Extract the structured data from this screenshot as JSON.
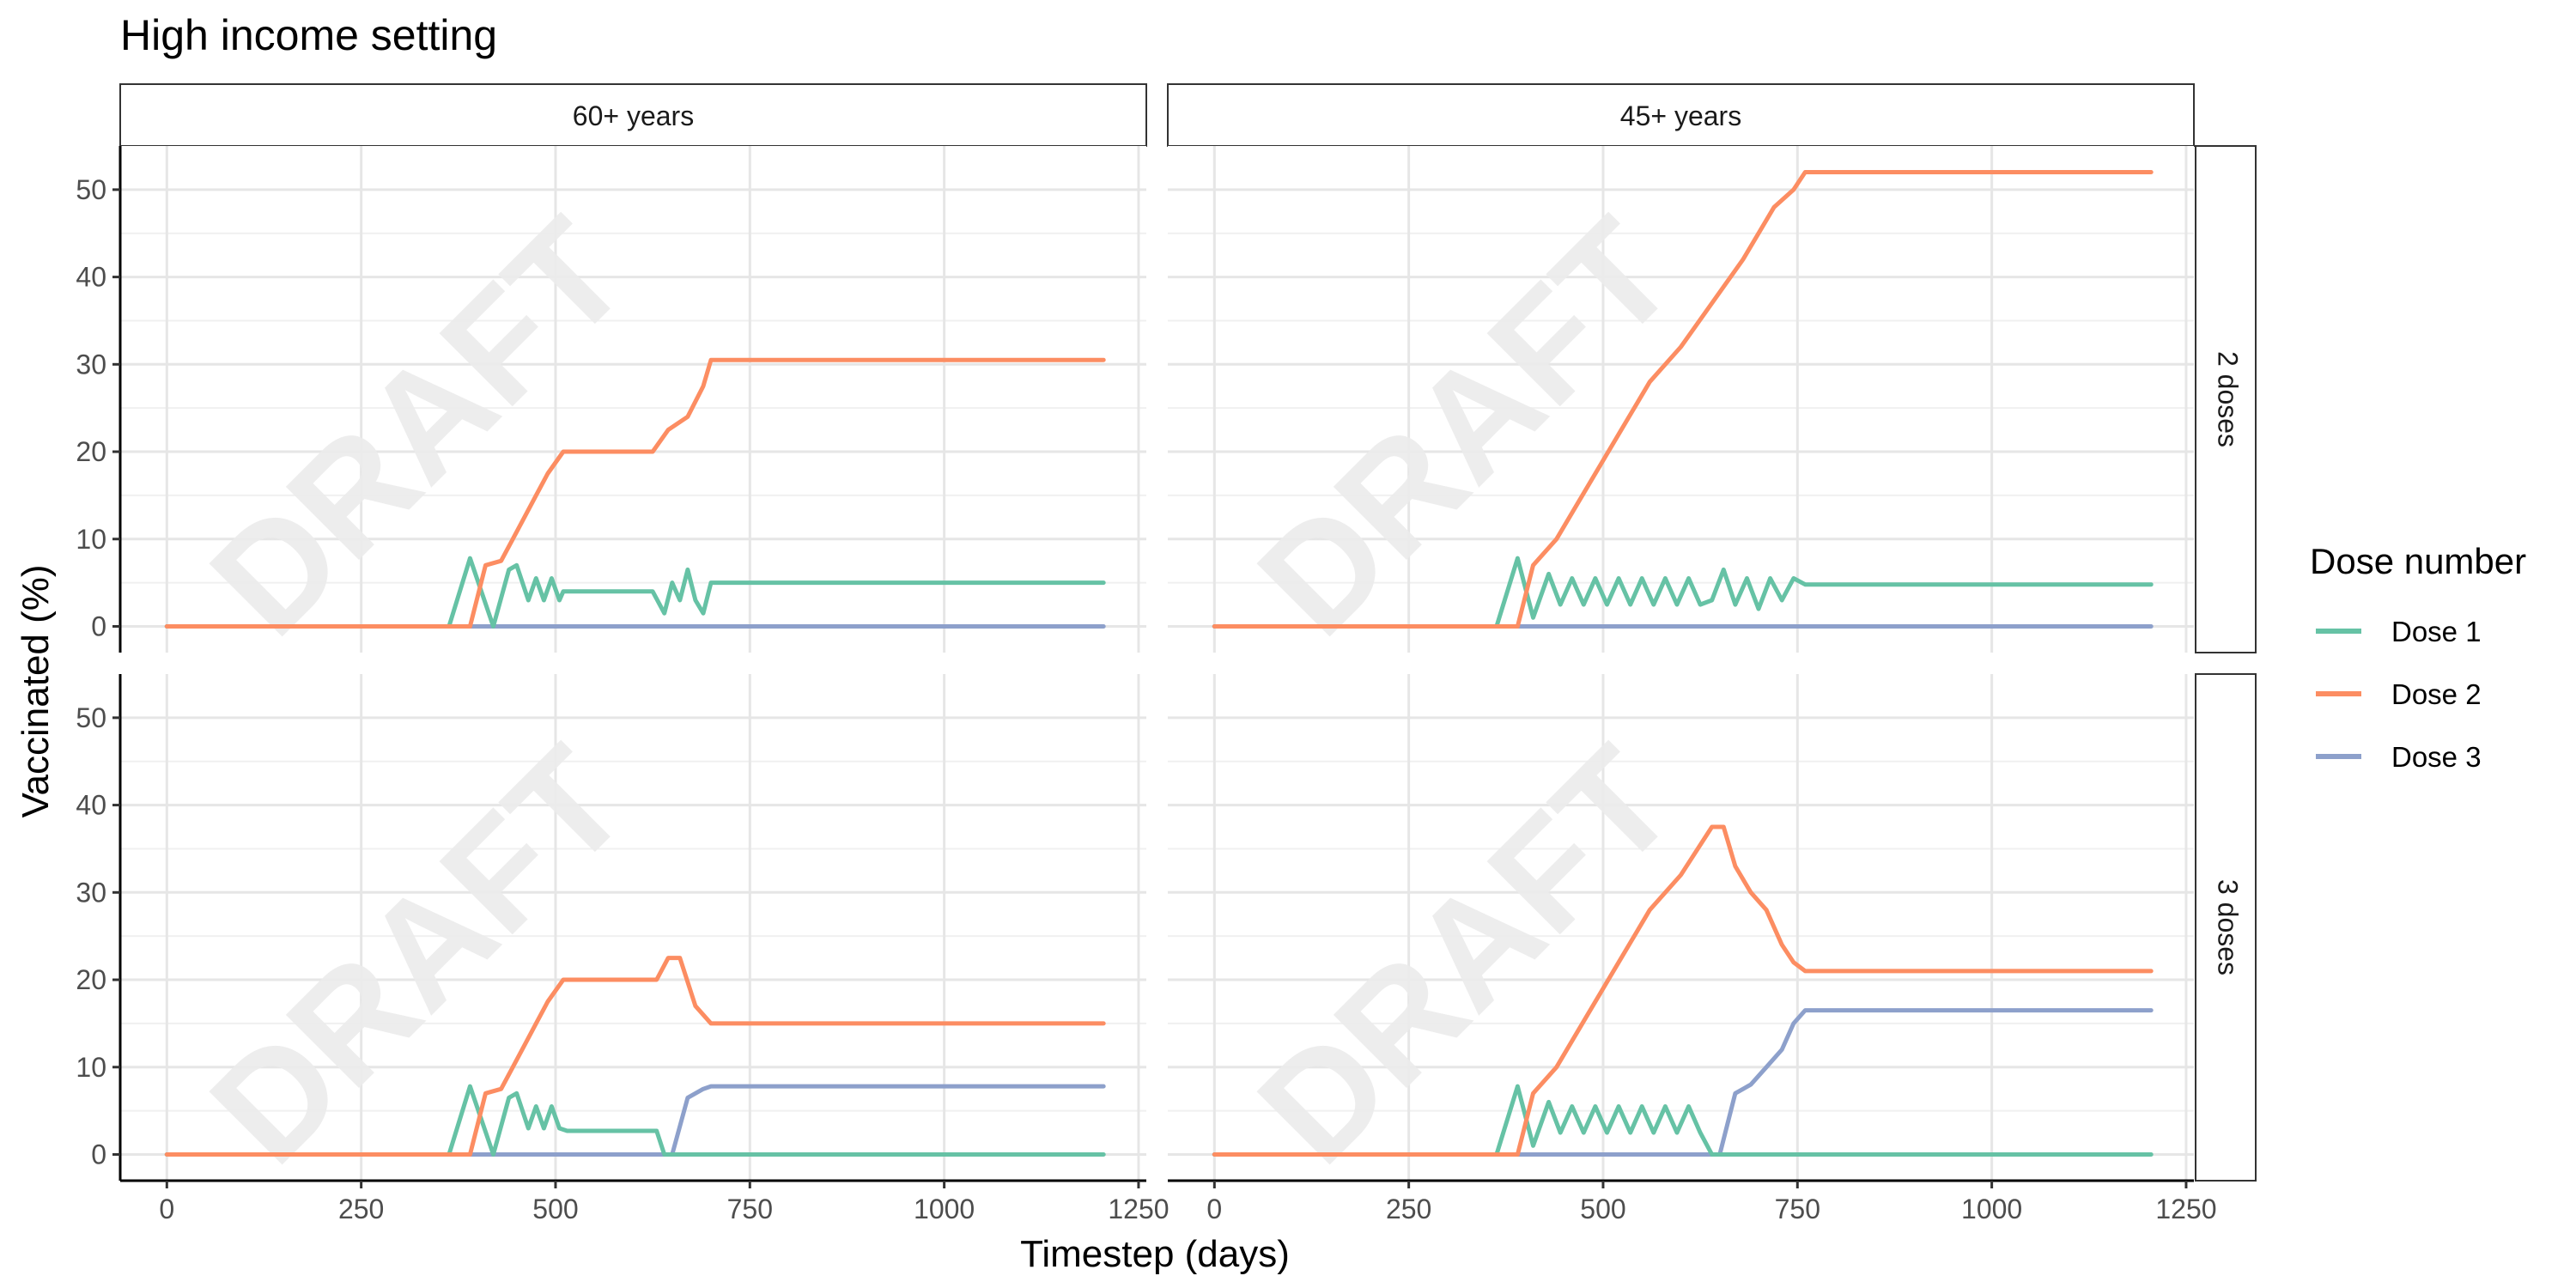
{
  "chart_data": {
    "type": "line",
    "title": "High income setting",
    "xlabel": "Timestep (days)",
    "ylabel": "Vaccinated (%)",
    "xlim": [
      -60,
      1260
    ],
    "ylim": [
      -3,
      55
    ],
    "x_ticks": [
      0,
      250,
      500,
      750,
      1000,
      1250
    ],
    "y_ticks": [
      0,
      10,
      20,
      30,
      40,
      50
    ],
    "grid": true,
    "watermark": "DRAFT",
    "column_facets": [
      "60+ years",
      "45+ years"
    ],
    "row_facets": [
      "2 doses",
      "3 doses"
    ],
    "legend": {
      "title": "Dose number",
      "placement": "right",
      "entries": [
        {
          "label": "Dose 1",
          "color": "#66c2a5"
        },
        {
          "label": "Dose 2",
          "color": "#fc8d62"
        },
        {
          "label": "Dose 3",
          "color": "#8da0cb"
        }
      ]
    },
    "panels": [
      {
        "column": "60+ years",
        "row": "2 doses",
        "series": [
          {
            "name": "Dose 1",
            "x": [
              0,
              363,
              390,
              420,
              440,
              450,
              465,
              475,
              485,
              495,
              505,
              510,
              625,
              640,
              650,
              660,
              670,
              680,
              690,
              700,
              1205
            ],
            "y": [
              0,
              0,
              7.8,
              0,
              6.5,
              7,
              3,
              5.5,
              3,
              5.5,
              3,
              4,
              4,
              1.5,
              5,
              3,
              6.5,
              3,
              1.5,
              5,
              5
            ]
          },
          {
            "name": "Dose 2",
            "x": [
              0,
              390,
              410,
              430,
              445,
              460,
              475,
              490,
              510,
              530,
              625,
              645,
              670,
              690,
              700,
              1205
            ],
            "y": [
              0,
              0,
              7,
              7.5,
              10,
              12.5,
              15,
              17.5,
              20,
              20,
              20,
              22.5,
              24,
              27.5,
              30.5,
              30.5
            ]
          },
          {
            "name": "Dose 3",
            "x": [
              0,
              1205
            ],
            "y": [
              0,
              0
            ]
          }
        ]
      },
      {
        "column": "45+ years",
        "row": "2 doses",
        "series": [
          {
            "name": "Dose 1",
            "x": [
              0,
              363,
              390,
              410,
              430,
              445,
              460,
              475,
              490,
              505,
              520,
              535,
              550,
              565,
              580,
              595,
              610,
              625,
              640,
              655,
              670,
              685,
              700,
              715,
              730,
              745,
              760,
              1205
            ],
            "y": [
              0,
              0,
              7.8,
              1,
              6,
              2.5,
              5.5,
              2.5,
              5.5,
              2.5,
              5.5,
              2.5,
              5.5,
              2.5,
              5.5,
              2.5,
              5.5,
              2.5,
              3,
              6.5,
              2.5,
              5.5,
              2,
              5.5,
              3,
              5.5,
              4.8,
              4.8
            ]
          },
          {
            "name": "Dose 2",
            "x": [
              0,
              390,
              410,
              440,
              480,
              520,
              560,
              600,
              640,
              680,
              720,
              745,
              760,
              1205
            ],
            "y": [
              0,
              0,
              7,
              10,
              16,
              22,
              28,
              32,
              37,
              42,
              48,
              50,
              52,
              52
            ]
          },
          {
            "name": "Dose 3",
            "x": [
              0,
              1205
            ],
            "y": [
              0,
              0
            ]
          }
        ]
      },
      {
        "column": "60+ years",
        "row": "3 doses",
        "series": [
          {
            "name": "Dose 1",
            "x": [
              0,
              363,
              390,
              420,
              440,
              450,
              465,
              475,
              485,
              495,
              505,
              515,
              630,
              640,
              1205
            ],
            "y": [
              0,
              0,
              7.8,
              0,
              6.5,
              7,
              3,
              5.5,
              3,
              5.5,
              3,
              2.7,
              2.7,
              0,
              0
            ]
          },
          {
            "name": "Dose 2",
            "x": [
              0,
              390,
              410,
              430,
              445,
              460,
              475,
              490,
              510,
              530,
              630,
              645,
              660,
              680,
              700,
              1205
            ],
            "y": [
              0,
              0,
              7,
              7.5,
              10,
              12.5,
              15,
              17.5,
              20,
              20,
              20,
              22.5,
              22.5,
              17,
              15,
              15
            ]
          },
          {
            "name": "Dose 3",
            "x": [
              0,
              650,
              670,
              690,
              700,
              1205
            ],
            "y": [
              0,
              0,
              6.5,
              7.5,
              7.8,
              7.8
            ]
          }
        ]
      },
      {
        "column": "45+ years",
        "row": "3 doses",
        "series": [
          {
            "name": "Dose 1",
            "x": [
              0,
              363,
              390,
              410,
              430,
              445,
              460,
              475,
              490,
              505,
              520,
              535,
              550,
              565,
              580,
              595,
              610,
              625,
              640,
              1205
            ],
            "y": [
              0,
              0,
              7.8,
              1,
              6,
              2.5,
              5.5,
              2.5,
              5.5,
              2.5,
              5.5,
              2.5,
              5.5,
              2.5,
              5.5,
              2.5,
              5.5,
              2.5,
              0,
              0
            ]
          },
          {
            "name": "Dose 2",
            "x": [
              0,
              390,
              410,
              440,
              480,
              520,
              560,
              600,
              640,
              655,
              670,
              690,
              710,
              730,
              745,
              760,
              1205
            ],
            "y": [
              0,
              0,
              7,
              10,
              16,
              22,
              28,
              32,
              37.5,
              37.5,
              33,
              30,
              28,
              24,
              22,
              21,
              21
            ]
          },
          {
            "name": "Dose 3",
            "x": [
              0,
              650,
              670,
              690,
              710,
              730,
              745,
              760,
              1205
            ],
            "y": [
              0,
              0,
              7,
              8,
              10,
              12,
              15,
              16.5,
              16.5
            ]
          }
        ]
      }
    ]
  }
}
